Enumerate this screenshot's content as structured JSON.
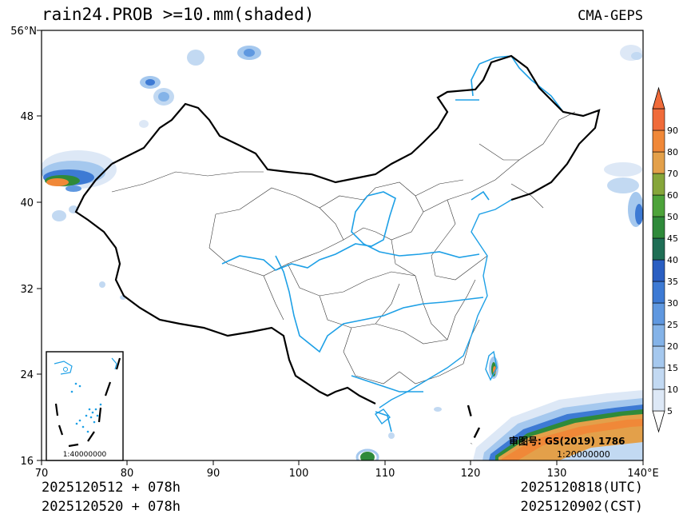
{
  "header": {
    "title": "rain24.PROB >=10.mm(shaded)",
    "model": "CMA-GEPS"
  },
  "map": {
    "x_ticks": [
      "70",
      "80",
      "90",
      "100",
      "110",
      "120",
      "130",
      "140°E"
    ],
    "y_ticks": [
      "16",
      "24",
      "32",
      "40",
      "48",
      "56°N"
    ],
    "review_label": "审图号: GS(2019) 1786",
    "scale_main": "1:20000000",
    "inset_scale": "1:40000000"
  },
  "colorbar": {
    "labels": [
      "5",
      "10",
      "15",
      "20",
      "25",
      "30",
      "35",
      "40",
      "45",
      "50",
      "60",
      "70",
      "80",
      "90"
    ],
    "colors": [
      "#dde8f6",
      "#c2d9f2",
      "#a5c8ee",
      "#84b3e8",
      "#5f98e0",
      "#3d7ad4",
      "#2a5ec2",
      "#1f6e55",
      "#2f8a3a",
      "#4da33a",
      "#86a63a",
      "#e3a04a",
      "#f08838",
      "#f06b3a"
    ]
  },
  "footer": {
    "init_utc": "2025120512 + 078h",
    "init_cst": "2025120520 + 078h",
    "valid_utc": "2025120818(UTC)",
    "valid_cst": "2025120902(CST)"
  }
}
